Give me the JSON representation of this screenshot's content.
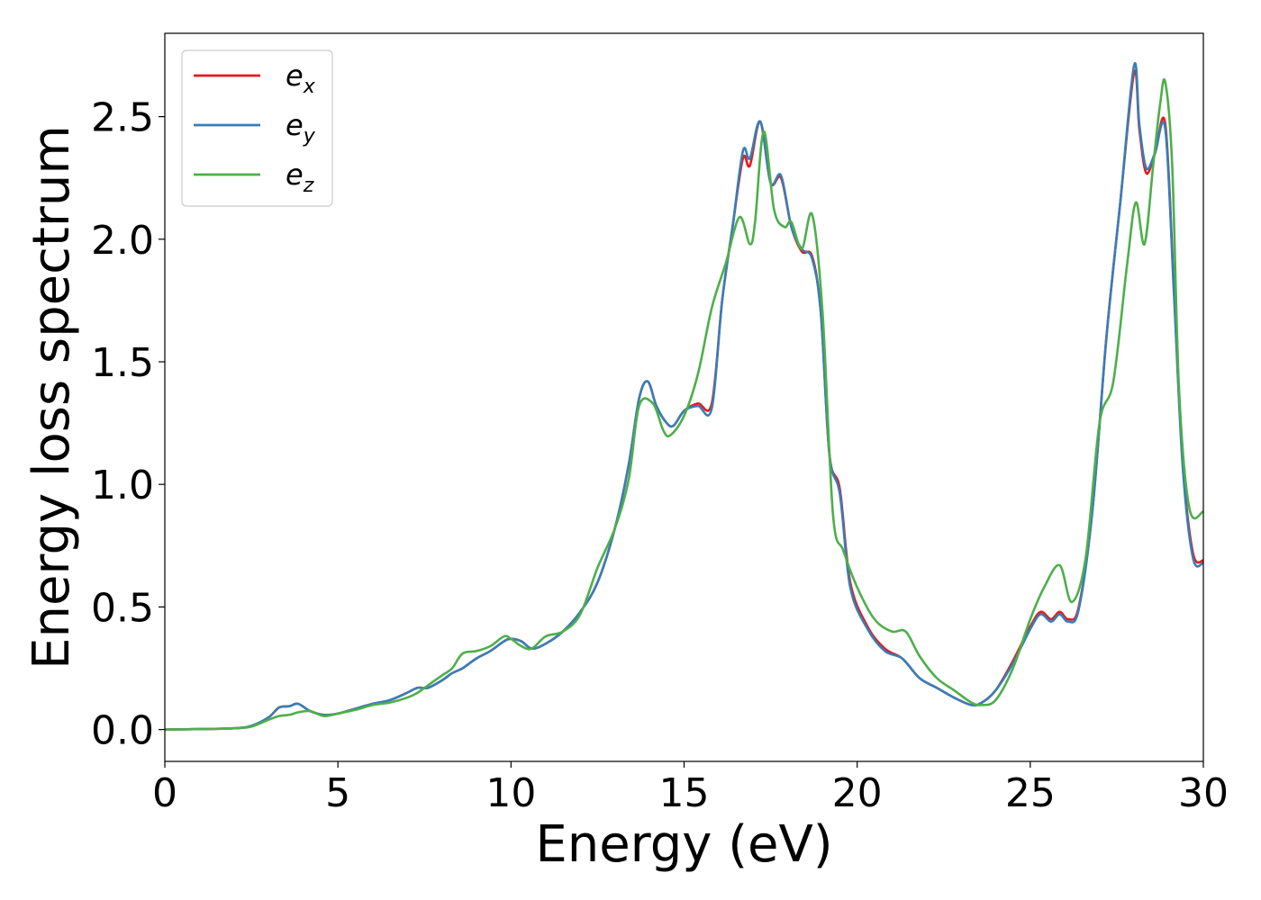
{
  "chart_data": {
    "type": "line",
    "title": "",
    "xlabel": "Energy (eV)",
    "ylabel": "Energy loss spectrum",
    "xlim": [
      0,
      30
    ],
    "ylim": [
      -0.13,
      2.84
    ],
    "xticks": [
      0,
      5,
      10,
      15,
      20,
      25,
      30
    ],
    "xtick_labels": [
      "0",
      "5",
      "10",
      "15",
      "20",
      "25",
      "30"
    ],
    "yticks": [
      0.0,
      0.5,
      1.0,
      1.5,
      2.0,
      2.5
    ],
    "ytick_labels": [
      "0.0",
      "0.5",
      "1.0",
      "1.5",
      "2.0",
      "2.5"
    ],
    "grid": false,
    "legend": {
      "position": "top-left",
      "entries": [
        {
          "base": "e",
          "sub": "x",
          "color": "#e41a1c"
        },
        {
          "base": "e",
          "sub": "y",
          "color": "#377eb8"
        },
        {
          "base": "e",
          "sub": "z",
          "color": "#4daf4a"
        }
      ]
    },
    "series": [
      {
        "name": "e_x",
        "color": "#e41a1c",
        "x": [
          0,
          1,
          2,
          2.5,
          3,
          3.3,
          3.6,
          3.85,
          4.2,
          4.6,
          5,
          5.5,
          6,
          6.5,
          7,
          7.3,
          7.6,
          8,
          8.3,
          8.6,
          9,
          9.4,
          9.8,
          10,
          10.3,
          10.6,
          11,
          11.5,
          12,
          12.5,
          13,
          13.4,
          13.7,
          13.95,
          14.2,
          14.5,
          14.7,
          15,
          15.4,
          15.8,
          16.1,
          16.4,
          16.7,
          16.9,
          17.2,
          17.5,
          17.8,
          18.1,
          18.4,
          18.7,
          18.95,
          19.2,
          19.5,
          19.8,
          20.3,
          20.8,
          21.3,
          21.8,
          22.3,
          22.8,
          23.3,
          23.6,
          24,
          24.5,
          25,
          25.3,
          25.6,
          25.85,
          26.1,
          26.4,
          26.8,
          27.2,
          27.6,
          28,
          28.15,
          28.35,
          28.6,
          28.9,
          29.15,
          29.4,
          29.7,
          30
        ],
        "y": [
          0,
          0.002,
          0.005,
          0.015,
          0.05,
          0.09,
          0.095,
          0.105,
          0.075,
          0.06,
          0.065,
          0.085,
          0.105,
          0.12,
          0.15,
          0.17,
          0.17,
          0.2,
          0.23,
          0.25,
          0.29,
          0.32,
          0.36,
          0.37,
          0.36,
          0.33,
          0.35,
          0.4,
          0.48,
          0.6,
          0.82,
          1.08,
          1.35,
          1.42,
          1.32,
          1.25,
          1.24,
          1.3,
          1.33,
          1.33,
          1.75,
          2.05,
          2.33,
          2.3,
          2.48,
          2.23,
          2.25,
          2.05,
          1.95,
          1.93,
          1.7,
          1.12,
          0.98,
          0.6,
          0.42,
          0.33,
          0.29,
          0.21,
          0.17,
          0.13,
          0.1,
          0.11,
          0.16,
          0.28,
          0.42,
          0.48,
          0.45,
          0.48,
          0.45,
          0.5,
          0.9,
          1.6,
          2.15,
          2.68,
          2.45,
          2.27,
          2.35,
          2.47,
          1.8,
          1.1,
          0.72,
          0.69
        ]
      },
      {
        "name": "e_y",
        "color": "#377eb8",
        "x": [
          0,
          1,
          2,
          2.5,
          3,
          3.3,
          3.6,
          3.85,
          4.2,
          4.6,
          5,
          5.5,
          6,
          6.5,
          7,
          7.3,
          7.6,
          8,
          8.3,
          8.6,
          9,
          9.4,
          9.8,
          10,
          10.3,
          10.6,
          11,
          11.5,
          12,
          12.5,
          13,
          13.4,
          13.7,
          13.95,
          14.2,
          14.5,
          14.7,
          15,
          15.4,
          15.8,
          16.1,
          16.4,
          16.7,
          16.9,
          17.2,
          17.5,
          17.8,
          18.1,
          18.4,
          18.7,
          18.95,
          19.2,
          19.5,
          19.8,
          20.3,
          20.8,
          21.3,
          21.8,
          22.3,
          22.8,
          23.3,
          23.6,
          24,
          24.5,
          25,
          25.3,
          25.6,
          25.85,
          26.1,
          26.4,
          26.8,
          27.2,
          27.6,
          28,
          28.15,
          28.35,
          28.6,
          28.9,
          29.15,
          29.4,
          29.7,
          30
        ],
        "y": [
          0,
          0.002,
          0.005,
          0.015,
          0.05,
          0.09,
          0.095,
          0.105,
          0.075,
          0.06,
          0.065,
          0.085,
          0.105,
          0.12,
          0.15,
          0.17,
          0.17,
          0.2,
          0.23,
          0.25,
          0.29,
          0.32,
          0.36,
          0.37,
          0.36,
          0.33,
          0.35,
          0.4,
          0.48,
          0.6,
          0.82,
          1.08,
          1.35,
          1.42,
          1.32,
          1.25,
          1.24,
          1.3,
          1.32,
          1.31,
          1.75,
          2.05,
          2.36,
          2.33,
          2.48,
          2.23,
          2.26,
          2.05,
          1.96,
          1.92,
          1.7,
          1.12,
          0.96,
          0.58,
          0.41,
          0.32,
          0.29,
          0.21,
          0.17,
          0.13,
          0.1,
          0.11,
          0.16,
          0.27,
          0.41,
          0.47,
          0.44,
          0.47,
          0.44,
          0.49,
          0.9,
          1.6,
          2.15,
          2.71,
          2.47,
          2.29,
          2.35,
          2.45,
          1.78,
          1.08,
          0.7,
          0.68
        ]
      },
      {
        "name": "e_z",
        "color": "#4daf4a",
        "x": [
          0,
          1,
          2,
          2.5,
          3,
          3.3,
          3.6,
          3.85,
          4.2,
          4.6,
          5,
          5.5,
          6,
          6.5,
          7,
          7.3,
          7.6,
          8,
          8.3,
          8.6,
          9,
          9.4,
          9.8,
          10,
          10.3,
          10.6,
          11,
          11.5,
          12,
          12.5,
          13,
          13.4,
          13.7,
          14.1,
          14.4,
          14.6,
          15,
          15.4,
          15.8,
          16.2,
          16.6,
          16.9,
          17.05,
          17.3,
          17.6,
          17.9,
          18.1,
          18.4,
          18.7,
          19.0,
          19.3,
          19.6,
          20.0,
          20.5,
          21.0,
          21.4,
          21.8,
          22.3,
          22.8,
          23.3,
          23.6,
          24,
          24.5,
          25,
          25.4,
          25.85,
          26.2,
          26.6,
          27.0,
          27.4,
          27.8,
          28.05,
          28.3,
          28.55,
          28.75,
          28.9,
          29.1,
          29.3,
          29.6,
          30
        ],
        "y": [
          0,
          0.002,
          0.005,
          0.012,
          0.04,
          0.055,
          0.06,
          0.07,
          0.075,
          0.055,
          0.065,
          0.08,
          0.1,
          0.11,
          0.13,
          0.15,
          0.18,
          0.22,
          0.25,
          0.31,
          0.32,
          0.34,
          0.38,
          0.37,
          0.34,
          0.33,
          0.38,
          0.4,
          0.47,
          0.66,
          0.82,
          1.02,
          1.32,
          1.33,
          1.22,
          1.2,
          1.28,
          1.45,
          1.72,
          1.9,
          2.09,
          1.98,
          2.07,
          2.44,
          2.12,
          2.05,
          2.07,
          1.96,
          2.1,
          1.7,
          0.88,
          0.73,
          0.58,
          0.45,
          0.4,
          0.4,
          0.3,
          0.21,
          0.16,
          0.11,
          0.1,
          0.12,
          0.25,
          0.45,
          0.58,
          0.67,
          0.52,
          0.7,
          1.25,
          1.42,
          1.9,
          2.15,
          1.98,
          2.3,
          2.55,
          2.64,
          2.3,
          1.38,
          0.9,
          0.89
        ]
      }
    ]
  }
}
